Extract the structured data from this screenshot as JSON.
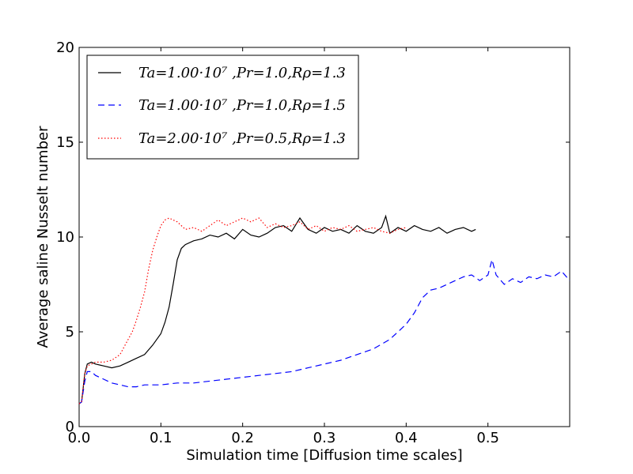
{
  "chart_data": {
    "type": "line",
    "title": "",
    "xlabel": "Simulation time [Diffusion time scales]",
    "ylabel": "Average saline Nusselt number",
    "xlim": [
      0.0,
      0.6
    ],
    "ylim": [
      0,
      20
    ],
    "xticks": [
      0.0,
      0.1,
      0.2,
      0.3,
      0.4,
      0.5
    ],
    "xtick_labels": [
      "0.0",
      "0.1",
      "0.2",
      "0.3",
      "0.4",
      "0.5"
    ],
    "yticks": [
      0,
      5,
      10,
      15,
      20
    ],
    "ytick_labels": [
      "0",
      "5",
      "10",
      "15",
      "20"
    ],
    "grid": false,
    "legend_position": "top-left",
    "series": [
      {
        "name": "Ta=1.00·10^7 ,Pr=1.0,Rρ=1.3",
        "legend_label": "Ta=1.00·10⁷ ,Pr=1.0,Rρ=1.3",
        "color": "#000000",
        "style": "solid",
        "x": [
          0.0,
          0.003,
          0.007,
          0.01,
          0.015,
          0.02,
          0.03,
          0.04,
          0.05,
          0.06,
          0.07,
          0.08,
          0.09,
          0.1,
          0.105,
          0.11,
          0.115,
          0.12,
          0.125,
          0.13,
          0.14,
          0.15,
          0.16,
          0.17,
          0.18,
          0.19,
          0.2,
          0.21,
          0.22,
          0.23,
          0.24,
          0.25,
          0.26,
          0.27,
          0.28,
          0.29,
          0.3,
          0.31,
          0.32,
          0.33,
          0.34,
          0.35,
          0.36,
          0.37,
          0.375,
          0.38,
          0.39,
          0.4,
          0.41,
          0.42,
          0.43,
          0.44,
          0.45,
          0.46,
          0.47,
          0.48,
          0.485
        ],
        "values": [
          1.2,
          1.3,
          2.8,
          3.3,
          3.4,
          3.3,
          3.2,
          3.1,
          3.2,
          3.4,
          3.6,
          3.8,
          4.3,
          4.9,
          5.5,
          6.3,
          7.5,
          8.8,
          9.4,
          9.6,
          9.8,
          9.9,
          10.1,
          10.0,
          10.2,
          9.9,
          10.4,
          10.1,
          10.0,
          10.2,
          10.5,
          10.6,
          10.3,
          11.0,
          10.4,
          10.2,
          10.5,
          10.3,
          10.4,
          10.2,
          10.6,
          10.3,
          10.2,
          10.5,
          11.1,
          10.2,
          10.5,
          10.3,
          10.6,
          10.4,
          10.3,
          10.5,
          10.2,
          10.4,
          10.5,
          10.3,
          10.4
        ]
      },
      {
        "name": "Ta=1.00·10^7 ,Pr=1.0,Rρ=1.5",
        "legend_label": "Ta=1.00·10⁷ ,Pr=1.0,Rρ=1.5",
        "color": "#0000ff",
        "style": "dashed",
        "x": [
          0.0,
          0.003,
          0.007,
          0.01,
          0.015,
          0.02,
          0.03,
          0.04,
          0.05,
          0.06,
          0.07,
          0.08,
          0.1,
          0.12,
          0.14,
          0.16,
          0.18,
          0.2,
          0.22,
          0.24,
          0.26,
          0.28,
          0.3,
          0.32,
          0.34,
          0.36,
          0.38,
          0.4,
          0.41,
          0.42,
          0.43,
          0.44,
          0.45,
          0.46,
          0.47,
          0.48,
          0.49,
          0.5,
          0.505,
          0.51,
          0.52,
          0.53,
          0.54,
          0.55,
          0.56,
          0.57,
          0.58,
          0.59,
          0.6
        ],
        "values": [
          1.2,
          1.3,
          2.4,
          2.9,
          2.9,
          2.7,
          2.5,
          2.3,
          2.2,
          2.1,
          2.1,
          2.2,
          2.2,
          2.3,
          2.3,
          2.4,
          2.5,
          2.6,
          2.7,
          2.8,
          2.9,
          3.1,
          3.3,
          3.5,
          3.8,
          4.1,
          4.6,
          5.4,
          6.0,
          6.8,
          7.2,
          7.3,
          7.5,
          7.7,
          7.9,
          8.0,
          7.7,
          8.0,
          8.8,
          8.0,
          7.5,
          7.8,
          7.6,
          7.9,
          7.8,
          8.0,
          7.9,
          8.2,
          7.7
        ]
      },
      {
        "name": "Ta=2.00·10^7 ,Pr=0.5,Rρ=1.3",
        "legend_label": "Ta=2.00·10⁷ ,Pr=0.5,Rρ=1.3",
        "color": "#ff0000",
        "style": "dotted",
        "x": [
          0.0,
          0.003,
          0.007,
          0.01,
          0.015,
          0.02,
          0.03,
          0.04,
          0.05,
          0.055,
          0.06,
          0.065,
          0.07,
          0.075,
          0.08,
          0.085,
          0.09,
          0.095,
          0.1,
          0.105,
          0.11,
          0.12,
          0.13,
          0.14,
          0.15,
          0.16,
          0.17,
          0.18,
          0.19,
          0.2,
          0.21,
          0.22,
          0.23,
          0.24,
          0.25,
          0.26,
          0.27,
          0.28,
          0.29,
          0.3,
          0.31,
          0.32,
          0.33,
          0.34,
          0.35,
          0.36,
          0.37,
          0.38,
          0.39,
          0.4
        ],
        "values": [
          1.2,
          1.3,
          2.8,
          3.2,
          3.3,
          3.4,
          3.4,
          3.5,
          3.8,
          4.2,
          4.6,
          5.0,
          5.6,
          6.3,
          7.1,
          8.3,
          9.3,
          10.0,
          10.6,
          10.9,
          11.0,
          10.8,
          10.4,
          10.5,
          10.3,
          10.6,
          10.9,
          10.6,
          10.8,
          11.0,
          10.8,
          11.0,
          10.5,
          10.7,
          10.5,
          10.6,
          10.8,
          10.4,
          10.6,
          10.3,
          10.5,
          10.4,
          10.6,
          10.3,
          10.4,
          10.5,
          10.3,
          10.2,
          10.4,
          10.5
        ]
      }
    ]
  }
}
